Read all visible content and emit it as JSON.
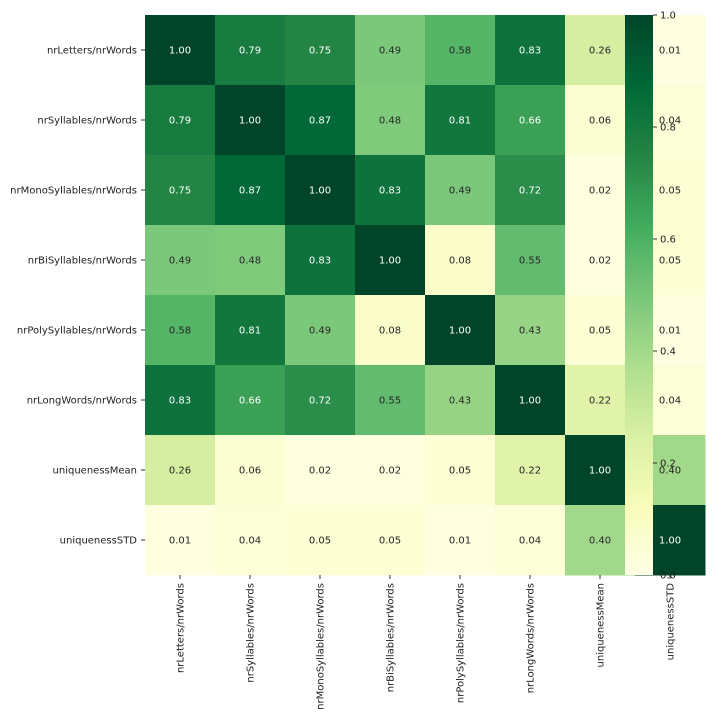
{
  "chart_data": {
    "type": "heatmap",
    "title": "",
    "xlabel": "",
    "ylabel": "",
    "rows": [
      "nrLetters/nrWords",
      "nrSyllables/nrWords",
      "nrMonoSyllables/nrWords",
      "nrBiSyllables/nrWords",
      "nrPolySyllables/nrWords",
      "nrLongWords/nrWords",
      "uniquenessMean",
      "uniquenessSTD"
    ],
    "columns": [
      "nrLetters/nrWords",
      "nrSyllables/nrWords",
      "nrMonoSyllables/nrWords",
      "nrBiSyllables/nrWords",
      "nrPolySyllables/nrWords",
      "nrLongWords/nrWords",
      "uniquenessMean",
      "uniquenessSTD"
    ],
    "values": [
      [
        1.0,
        0.79,
        0.75,
        0.49,
        0.58,
        0.83,
        0.26,
        0.01
      ],
      [
        0.79,
        1.0,
        0.87,
        0.48,
        0.81,
        0.66,
        0.06,
        0.04
      ],
      [
        0.75,
        0.87,
        1.0,
        0.83,
        0.49,
        0.72,
        0.02,
        0.05
      ],
      [
        0.49,
        0.48,
        0.83,
        1.0,
        0.08,
        0.55,
        0.02,
        0.05
      ],
      [
        0.58,
        0.81,
        0.49,
        0.08,
        1.0,
        0.43,
        0.05,
        0.01
      ],
      [
        0.83,
        0.66,
        0.72,
        0.55,
        0.43,
        1.0,
        0.22,
        0.04
      ],
      [
        0.26,
        0.06,
        0.02,
        0.02,
        0.05,
        0.22,
        1.0,
        0.4
      ],
      [
        0.01,
        0.04,
        0.05,
        0.05,
        0.01,
        0.04,
        0.4,
        1.0
      ]
    ],
    "value_format": "0.00",
    "colormap": "YlGn",
    "colorbar": {
      "range": [
        0.0,
        1.0
      ],
      "ticks": [
        0.0,
        0.2,
        0.4,
        0.6,
        0.8,
        1.0
      ],
      "tick_labels": [
        "0.0",
        "0.2",
        "0.4",
        "0.6",
        "0.8",
        "1.0"
      ],
      "placement": "right"
    },
    "colors": {
      "stops": [
        "#ffffe5",
        "#f7fcb9",
        "#d9f0a3",
        "#addd8e",
        "#78c679",
        "#41ab5d",
        "#238443",
        "#006837",
        "#004529"
      ],
      "annotation_dark": "#262626",
      "annotation_light": "#ffffff"
    }
  }
}
